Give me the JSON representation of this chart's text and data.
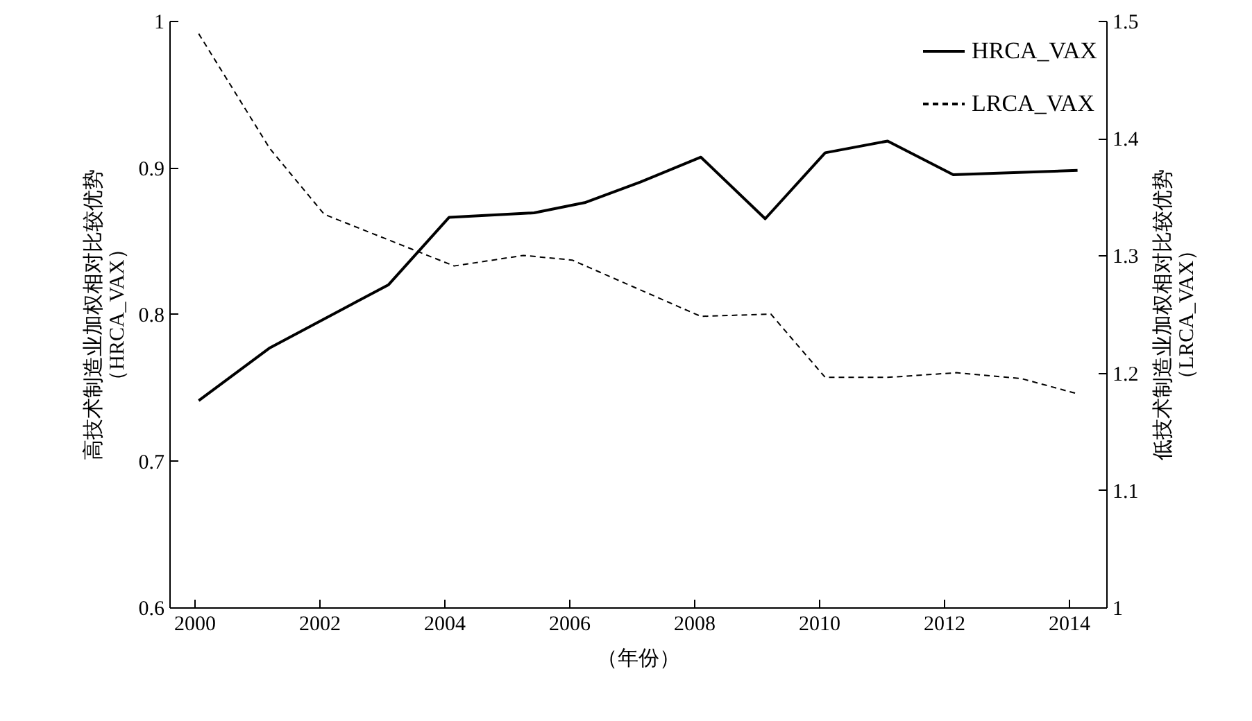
{
  "chart_data": {
    "type": "line",
    "xlabel": "（年份）",
    "ylabel": "高技术制造业加权相对比较优势（HRCA_VAX）",
    "y2label": "低技术制造业加权相对比较优势（LRCA_VAX）",
    "xlim": [
      1999.6,
      2014.6
    ],
    "xticks": [
      2000,
      2002,
      2004,
      2006,
      2008,
      2010,
      2012,
      2014
    ],
    "ylim": [
      0.6,
      1
    ],
    "yticks": [
      0.6,
      0.7,
      0.8,
      0.9,
      1
    ],
    "y2lim": [
      1,
      1.5
    ],
    "y2ticks": [
      1,
      1.1,
      1.2,
      1.3,
      1.4,
      1.5
    ],
    "grid": false,
    "legend": "top right",
    "marker": "none",
    "series": [
      {
        "name": "HRCA_VAX",
        "color": "#000000",
        "line_style": "solid",
        "x": [
          2000.07,
          2001.21,
          2003.11,
          2004.08,
          2005.44,
          2006.25,
          2007.14,
          2008.11,
          2009.14,
          2010.1,
          2011.1,
          2012.15,
          2014.14
        ],
        "values": [
          0.741,
          0.777,
          0.82,
          0.866,
          0.869,
          0.876,
          0.89,
          0.907,
          0.865,
          0.91,
          0.918,
          0.895,
          0.898
        ]
      },
      {
        "name": "LRCA_VAX",
        "color": "#000000",
        "line_style": "dashed",
        "axis": "y2",
        "x": [
          2000.07,
          2001.21,
          2002.08,
          2004.16,
          2005.27,
          2006.05,
          2008.11,
          2009.23,
          2010.1,
          2011.1,
          2012.2,
          2013.24,
          2014.14
        ],
        "values": [
          1.489,
          1.391,
          1.335,
          1.291,
          1.3,
          1.296,
          1.248,
          1.25,
          1.196,
          1.196,
          1.2,
          1.195,
          1.182
        ]
      }
    ]
  }
}
